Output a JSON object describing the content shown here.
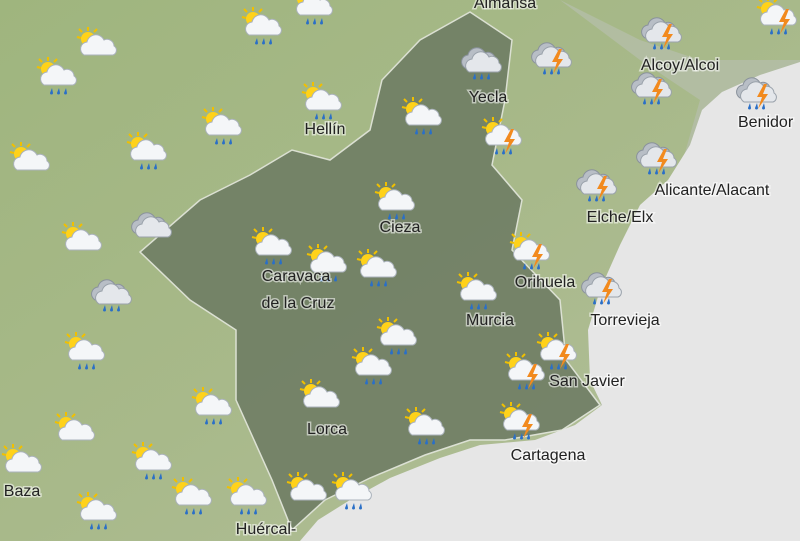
{
  "places": [
    "Almansa",
    "Yecla",
    "Hellín",
    "Alcoy/Alcoi",
    "Benidor",
    "Cieza",
    "Alicante/Alacant",
    "Elche/Elx",
    "Caravaca",
    "de la Cruz",
    "Orihuela",
    "Murcia",
    "Torrevieja",
    "San Javier",
    "Lorca",
    "Cartagena",
    "Baza",
    "Huércal-"
  ]
}
